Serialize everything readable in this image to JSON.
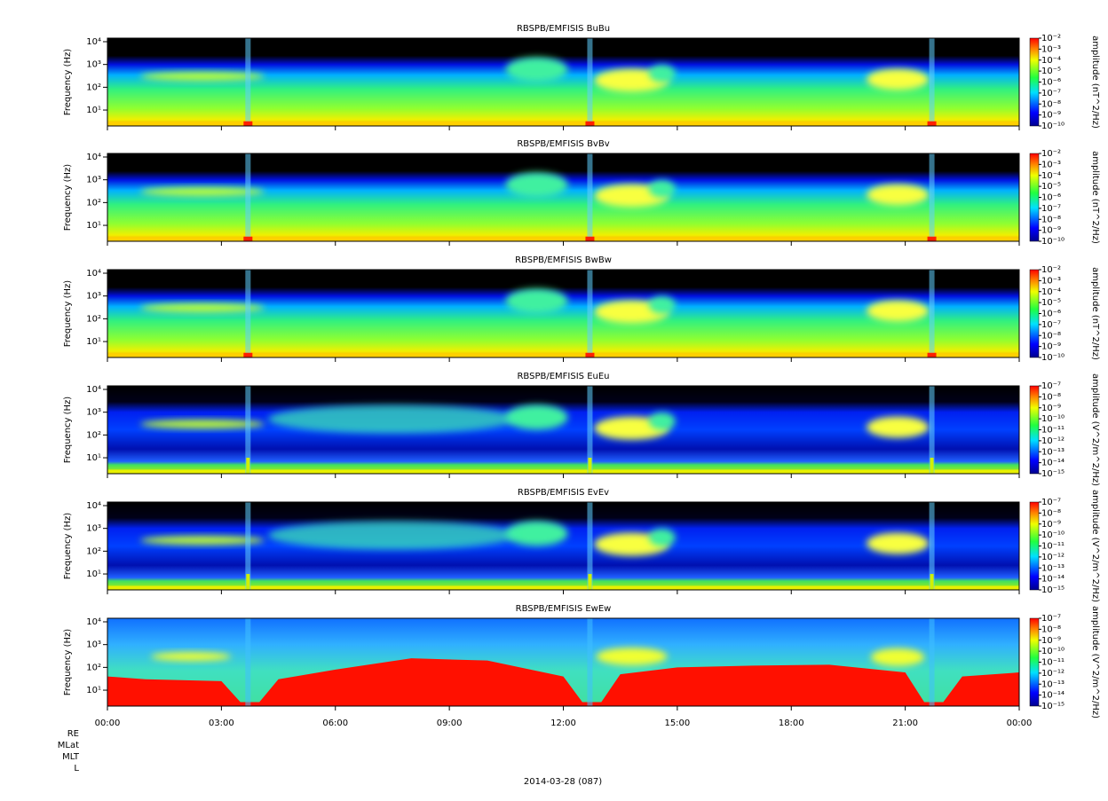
{
  "chart_data": [
    {
      "type": "spectrogram",
      "title": "RBSPB/EMFISIS  BuBu",
      "ylabel": "Frequency (Hz)",
      "ylog": true,
      "ylim": [
        2,
        14300
      ],
      "yticks": [
        {
          "value": 10,
          "label": "10¹"
        },
        {
          "value": 100,
          "label": "10²"
        },
        {
          "value": 1000,
          "label": "10³"
        },
        {
          "value": 10000,
          "label": "10⁴"
        }
      ],
      "zlabel": "amplitude (nT^2/Hz)",
      "zlog": true,
      "zlim": [
        1e-10,
        0.01
      ],
      "zticks": [
        {
          "value": 0.01,
          "label": "10⁻²"
        },
        {
          "value": 0.001,
          "label": "10⁻³"
        },
        {
          "value": 0.0001,
          "label": "10⁻⁴"
        },
        {
          "value": 1e-05,
          "label": "10⁻⁵"
        },
        {
          "value": 1e-06,
          "label": "10⁻⁶"
        },
        {
          "value": 1e-07,
          "label": "10⁻⁷"
        },
        {
          "value": 1e-08,
          "label": "10⁻⁸"
        },
        {
          "value": 1e-09,
          "label": "10⁻⁹"
        },
        {
          "value": 1e-10,
          "label": "10⁻¹⁰"
        }
      ]
    },
    {
      "type": "spectrogram",
      "title": "RBSPB/EMFISIS  BvBv",
      "ylabel": "Frequency (Hz)",
      "ylog": true,
      "ylim": [
        2,
        14300
      ],
      "yticks": [
        {
          "value": 10,
          "label": "10¹"
        },
        {
          "value": 100,
          "label": "10²"
        },
        {
          "value": 1000,
          "label": "10³"
        },
        {
          "value": 10000,
          "label": "10⁴"
        }
      ],
      "zlabel": "amplitude (nT^2/Hz)",
      "zlog": true,
      "zlim": [
        1e-10,
        0.01
      ],
      "zticks": [
        {
          "value": 0.01,
          "label": "10⁻²"
        },
        {
          "value": 0.001,
          "label": "10⁻³"
        },
        {
          "value": 0.0001,
          "label": "10⁻⁴"
        },
        {
          "value": 1e-05,
          "label": "10⁻⁵"
        },
        {
          "value": 1e-06,
          "label": "10⁻⁶"
        },
        {
          "value": 1e-07,
          "label": "10⁻⁷"
        },
        {
          "value": 1e-08,
          "label": "10⁻⁸"
        },
        {
          "value": 1e-09,
          "label": "10⁻⁹"
        },
        {
          "value": 1e-10,
          "label": "10⁻¹⁰"
        }
      ]
    },
    {
      "type": "spectrogram",
      "title": "RBSPB/EMFISIS  BwBw",
      "ylabel": "Frequency (Hz)",
      "ylog": true,
      "ylim": [
        2,
        14300
      ],
      "yticks": [
        {
          "value": 10,
          "label": "10¹"
        },
        {
          "value": 100,
          "label": "10²"
        },
        {
          "value": 1000,
          "label": "10³"
        },
        {
          "value": 10000,
          "label": "10⁴"
        }
      ],
      "zlabel": "amplitude (nT^2/Hz)",
      "zlog": true,
      "zlim": [
        1e-10,
        0.01
      ],
      "zticks": [
        {
          "value": 0.01,
          "label": "10⁻²"
        },
        {
          "value": 0.001,
          "label": "10⁻³"
        },
        {
          "value": 0.0001,
          "label": "10⁻⁴"
        },
        {
          "value": 1e-05,
          "label": "10⁻⁵"
        },
        {
          "value": 1e-06,
          "label": "10⁻⁶"
        },
        {
          "value": 1e-07,
          "label": "10⁻⁷"
        },
        {
          "value": 1e-08,
          "label": "10⁻⁸"
        },
        {
          "value": 1e-09,
          "label": "10⁻⁹"
        },
        {
          "value": 1e-10,
          "label": "10⁻¹⁰"
        }
      ]
    },
    {
      "type": "spectrogram",
      "title": "RBSPB/EMFISIS  EuEu",
      "ylabel": "Frequency (Hz)",
      "ylog": true,
      "ylim": [
        2,
        14300
      ],
      "yticks": [
        {
          "value": 10,
          "label": "10¹"
        },
        {
          "value": 100,
          "label": "10²"
        },
        {
          "value": 1000,
          "label": "10³"
        },
        {
          "value": 10000,
          "label": "10⁴"
        }
      ],
      "zlabel": "amplitude (V^2/m^2/Hz)",
      "zlog": true,
      "zlim": [
        1e-15,
        1e-07
      ],
      "zticks": [
        {
          "value": 1e-07,
          "label": "10⁻⁷"
        },
        {
          "value": 1e-08,
          "label": "10⁻⁸"
        },
        {
          "value": 1e-09,
          "label": "10⁻⁹"
        },
        {
          "value": 1e-10,
          "label": "10⁻¹⁰"
        },
        {
          "value": 1e-11,
          "label": "10⁻¹¹"
        },
        {
          "value": 1e-12,
          "label": "10⁻¹²"
        },
        {
          "value": 1e-13,
          "label": "10⁻¹³"
        },
        {
          "value": 1e-14,
          "label": "10⁻¹⁴"
        },
        {
          "value": 1e-15,
          "label": "10⁻¹⁵"
        }
      ]
    },
    {
      "type": "spectrogram",
      "title": "RBSPB/EMFISIS  EvEv",
      "ylabel": "Frequency (Hz)",
      "ylog": true,
      "ylim": [
        2,
        14300
      ],
      "yticks": [
        {
          "value": 10,
          "label": "10¹"
        },
        {
          "value": 100,
          "label": "10²"
        },
        {
          "value": 1000,
          "label": "10³"
        },
        {
          "value": 10000,
          "label": "10⁴"
        }
      ],
      "zlabel": "amplitude (V^2/m^2/Hz)",
      "zlog": true,
      "zlim": [
        1e-15,
        1e-07
      ],
      "zticks": [
        {
          "value": 1e-07,
          "label": "10⁻⁷"
        },
        {
          "value": 1e-08,
          "label": "10⁻⁸"
        },
        {
          "value": 1e-09,
          "label": "10⁻⁹"
        },
        {
          "value": 1e-10,
          "label": "10⁻¹⁰"
        },
        {
          "value": 1e-11,
          "label": "10⁻¹¹"
        },
        {
          "value": 1e-12,
          "label": "10⁻¹²"
        },
        {
          "value": 1e-13,
          "label": "10⁻¹³"
        },
        {
          "value": 1e-14,
          "label": "10⁻¹⁴"
        },
        {
          "value": 1e-15,
          "label": "10⁻¹⁵"
        }
      ]
    },
    {
      "type": "spectrogram",
      "title": "RBSPB/EMFISIS  EwEw",
      "ylabel": "Frequency (Hz)",
      "ylog": true,
      "ylim": [
        2,
        14300
      ],
      "yticks": [
        {
          "value": 10,
          "label": "10¹"
        },
        {
          "value": 100,
          "label": "10²"
        },
        {
          "value": 1000,
          "label": "10³"
        },
        {
          "value": 10000,
          "label": "10⁴"
        }
      ],
      "zlabel": "amplitude (V^2/m^2/Hz)",
      "zlog": true,
      "zlim": [
        1e-15,
        1e-07
      ],
      "zticks": [
        {
          "value": 1e-07,
          "label": "10⁻⁷"
        },
        {
          "value": 1e-08,
          "label": "10⁻⁸"
        },
        {
          "value": 1e-09,
          "label": "10⁻⁹"
        },
        {
          "value": 1e-10,
          "label": "10⁻¹⁰"
        },
        {
          "value": 1e-11,
          "label": "10⁻¹¹"
        },
        {
          "value": 1e-12,
          "label": "10⁻¹²"
        },
        {
          "value": 1e-13,
          "label": "10⁻¹³"
        },
        {
          "value": 1e-14,
          "label": "10⁻¹⁴"
        },
        {
          "value": 1e-15,
          "label": "10⁻¹⁵"
        }
      ]
    }
  ],
  "x_axis": {
    "xlim": [
      0,
      24
    ],
    "xticks": [
      {
        "value": 0,
        "label": "00:00"
      },
      {
        "value": 3,
        "label": "03:00"
      },
      {
        "value": 6,
        "label": "06:00"
      },
      {
        "value": 9,
        "label": "09:00"
      },
      {
        "value": 12,
        "label": "12:00"
      },
      {
        "value": 15,
        "label": "15:00"
      },
      {
        "value": 18,
        "label": "18:00"
      },
      {
        "value": 21,
        "label": "21:00"
      },
      {
        "value": 24,
        "label": "00:00"
      }
    ],
    "row_labels": [
      "RE",
      "MLat",
      "MLT",
      "L"
    ],
    "xlabel": "2014-03-28 (087)"
  }
}
